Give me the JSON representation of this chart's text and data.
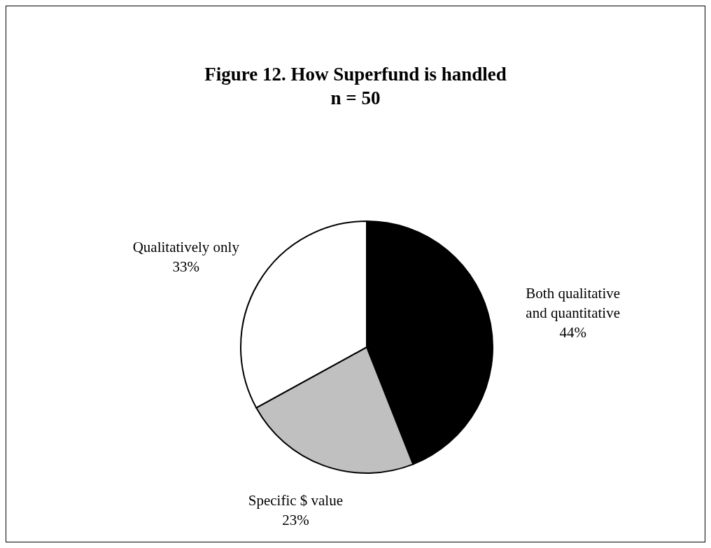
{
  "chart_data": {
    "type": "pie",
    "title": "Figure 12.  How Superfund is handled",
    "subtitle": "n = 50",
    "categories": [
      "Both qualitative and quantitative",
      "Specific $ value",
      "Qualitatively only"
    ],
    "values": [
      44,
      23,
      33
    ],
    "colors": [
      "#000000",
      "#c0c0c0",
      "#ffffff"
    ],
    "value_labels": [
      "44%",
      "23%",
      "33%"
    ]
  }
}
